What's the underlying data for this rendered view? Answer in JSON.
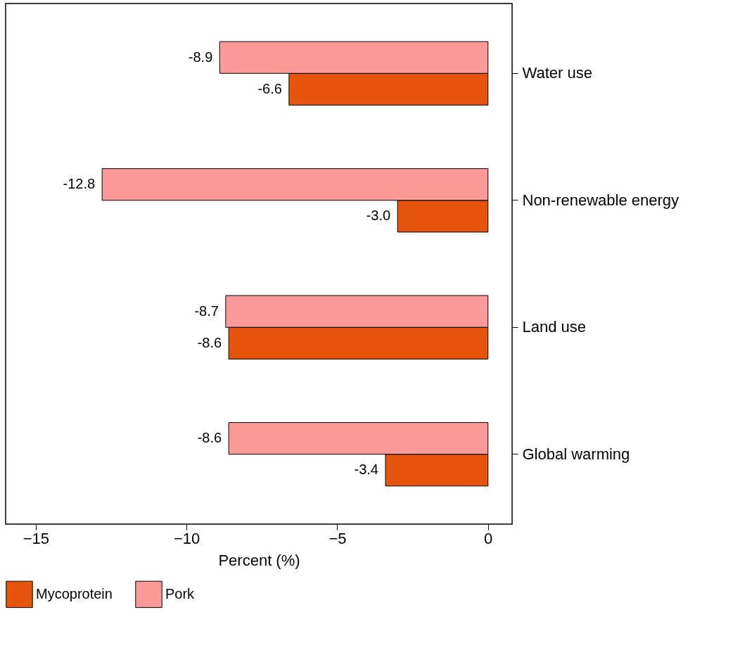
{
  "chart_data": {
    "type": "bar",
    "orientation": "horizontal",
    "xlabel": "Percent (%)",
    "categories": [
      "Water use",
      "Non-renewable energy",
      "Land use",
      "Global warming"
    ],
    "series": [
      {
        "name": "Mycoprotein",
        "color": "#e6550d",
        "values": [
          -6.6,
          -3.0,
          -8.6,
          -3.4
        ],
        "value_labels": [
          "-6.6",
          "-3.0",
          "-8.6",
          "-3.4"
        ]
      },
      {
        "name": "Pork",
        "color": "#fc9a9a",
        "values": [
          -8.9,
          -12.8,
          -8.7,
          -8.6
        ],
        "value_labels": [
          "-8.9",
          "-12.8",
          "-8.7",
          "-8.6"
        ]
      }
    ],
    "xlim": [
      -16,
      0.8
    ],
    "xticks": [
      -15,
      -10,
      -5,
      0
    ],
    "legend": "bottom",
    "grid": false
  }
}
